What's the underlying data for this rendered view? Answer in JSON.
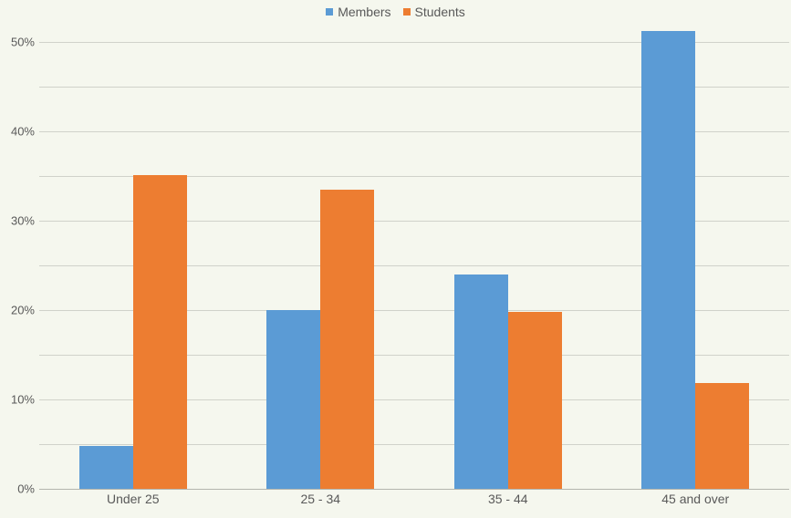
{
  "chart_data": {
    "type": "bar",
    "title": "",
    "categories": [
      "Under 25",
      "25 - 34",
      "35 - 44",
      "45 and over"
    ],
    "series": [
      {
        "name": "Members",
        "color": "#5b9bd5",
        "values": [
          4.8,
          20,
          24,
          51.2
        ]
      },
      {
        "name": "Students",
        "color": "#ed7d31",
        "values": [
          35.1,
          33.5,
          19.8,
          11.8
        ]
      }
    ],
    "xlabel": "",
    "ylabel": "",
    "ylim": [
      0,
      52
    ],
    "y_tick_labels": [
      "0%",
      "10%",
      "20%",
      "30%",
      "40%",
      "50%"
    ],
    "y_label_step": 10,
    "grid_step": 5,
    "grid": true,
    "legend_position": "top-center",
    "value_format": "percent"
  },
  "colors": {
    "background": "#f5f7ee",
    "gridline": "#d0d2ca",
    "axis": "#b3b5ae",
    "text": "#595959"
  }
}
